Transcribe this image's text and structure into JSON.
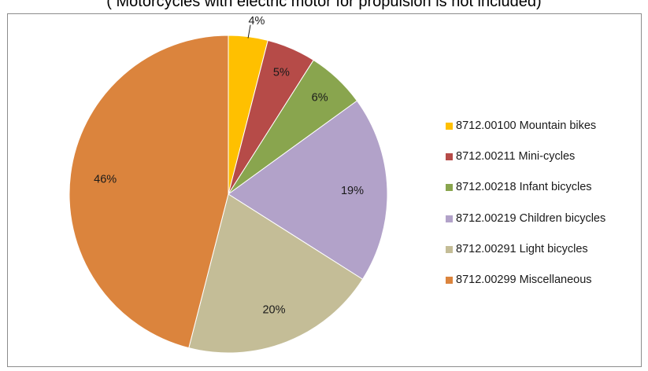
{
  "subtitle": "( Motorcycles with electric motor for propulsion  is not included)",
  "chart_data": {
    "type": "pie",
    "title": "",
    "slices": [
      {
        "label": "8712.00100 Mountain bikes",
        "value": 4,
        "display": "4%",
        "color": "#ffc000"
      },
      {
        "label": "8712.00211 Mini-cycles",
        "value": 5,
        "display": "5%",
        "color": "#b64b48"
      },
      {
        "label": "8712.00218 Infant bicycles",
        "value": 6,
        "display": "6%",
        "color": "#89a54e"
      },
      {
        "label": "8712.00219 Children bicycles",
        "value": 19,
        "display": "19%",
        "color": "#b2a2c9"
      },
      {
        "label": "8712.00291 Light bicycles",
        "value": 20,
        "display": "20%",
        "color": "#c4bd97"
      },
      {
        "label": "8712.00299 Miscellaneous",
        "value": 46,
        "display": "46%",
        "color": "#db843d"
      }
    ],
    "legend_position": "right"
  }
}
